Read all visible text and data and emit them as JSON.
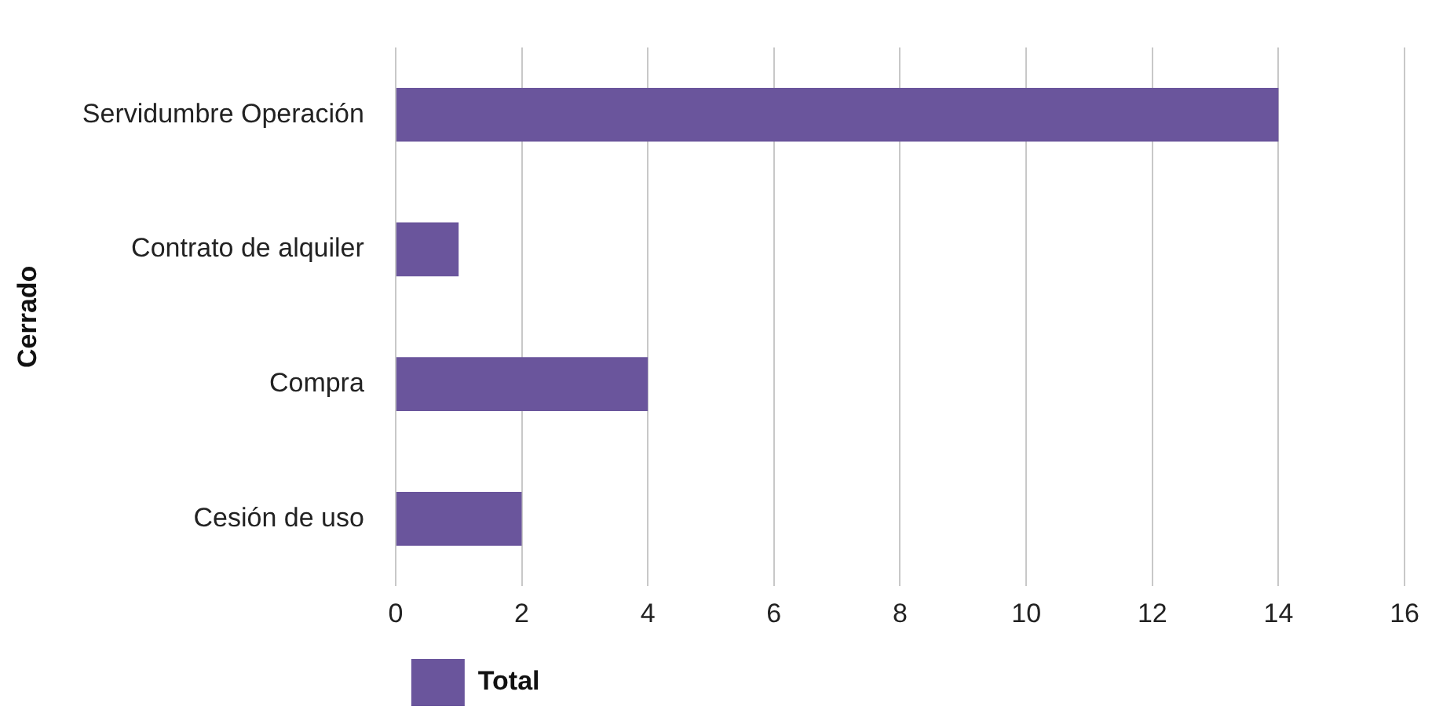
{
  "chart_data": {
    "type": "bar",
    "orientation": "horizontal",
    "ylabel": "Cerrado",
    "categories": [
      "Servidumbre Operación",
      "Contrato de alquiler",
      "Compra",
      "Cesión de uso"
    ],
    "series": [
      {
        "name": "Total",
        "color": "#6a559c",
        "values": [
          14,
          1,
          4,
          2
        ]
      }
    ],
    "xlim": [
      0,
      16
    ],
    "xticks": [
      0,
      2,
      4,
      6,
      8,
      10,
      12,
      14,
      16
    ],
    "grid": "x",
    "legend": "bottom left"
  }
}
